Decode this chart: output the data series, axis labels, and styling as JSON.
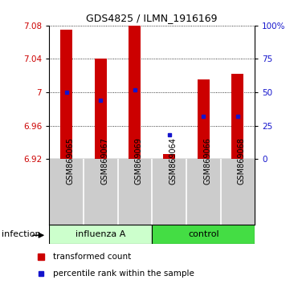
{
  "title": "GDS4825 / ILMN_1916169",
  "samples": [
    "GSM869065",
    "GSM869067",
    "GSM869069",
    "GSM869064",
    "GSM869066",
    "GSM869068"
  ],
  "bar_tops": [
    7.075,
    7.04,
    7.08,
    6.926,
    7.015,
    7.022
  ],
  "bar_bottom": 6.92,
  "percentile_ranks": [
    50,
    44,
    52,
    18,
    32,
    32
  ],
  "ylim": [
    6.92,
    7.08
  ],
  "yticks": [
    6.92,
    6.96,
    7.0,
    7.04,
    7.08
  ],
  "ytick_labels": [
    "6.92",
    "6.96",
    "7",
    "7.04",
    "7.08"
  ],
  "right_yticks": [
    0,
    25,
    50,
    75,
    100
  ],
  "right_ytick_labels": [
    "0",
    "25",
    "50",
    "75",
    "100%"
  ],
  "bar_color": "#cc0000",
  "blue_color": "#1414cc",
  "bar_width": 0.35,
  "influenza_color": "#ccffcc",
  "control_color": "#44dd44",
  "label_bg_color": "#cccccc",
  "grid_color": "black",
  "legend_items": [
    "transformed count",
    "percentile rank within the sample"
  ],
  "infection_label": "infection"
}
